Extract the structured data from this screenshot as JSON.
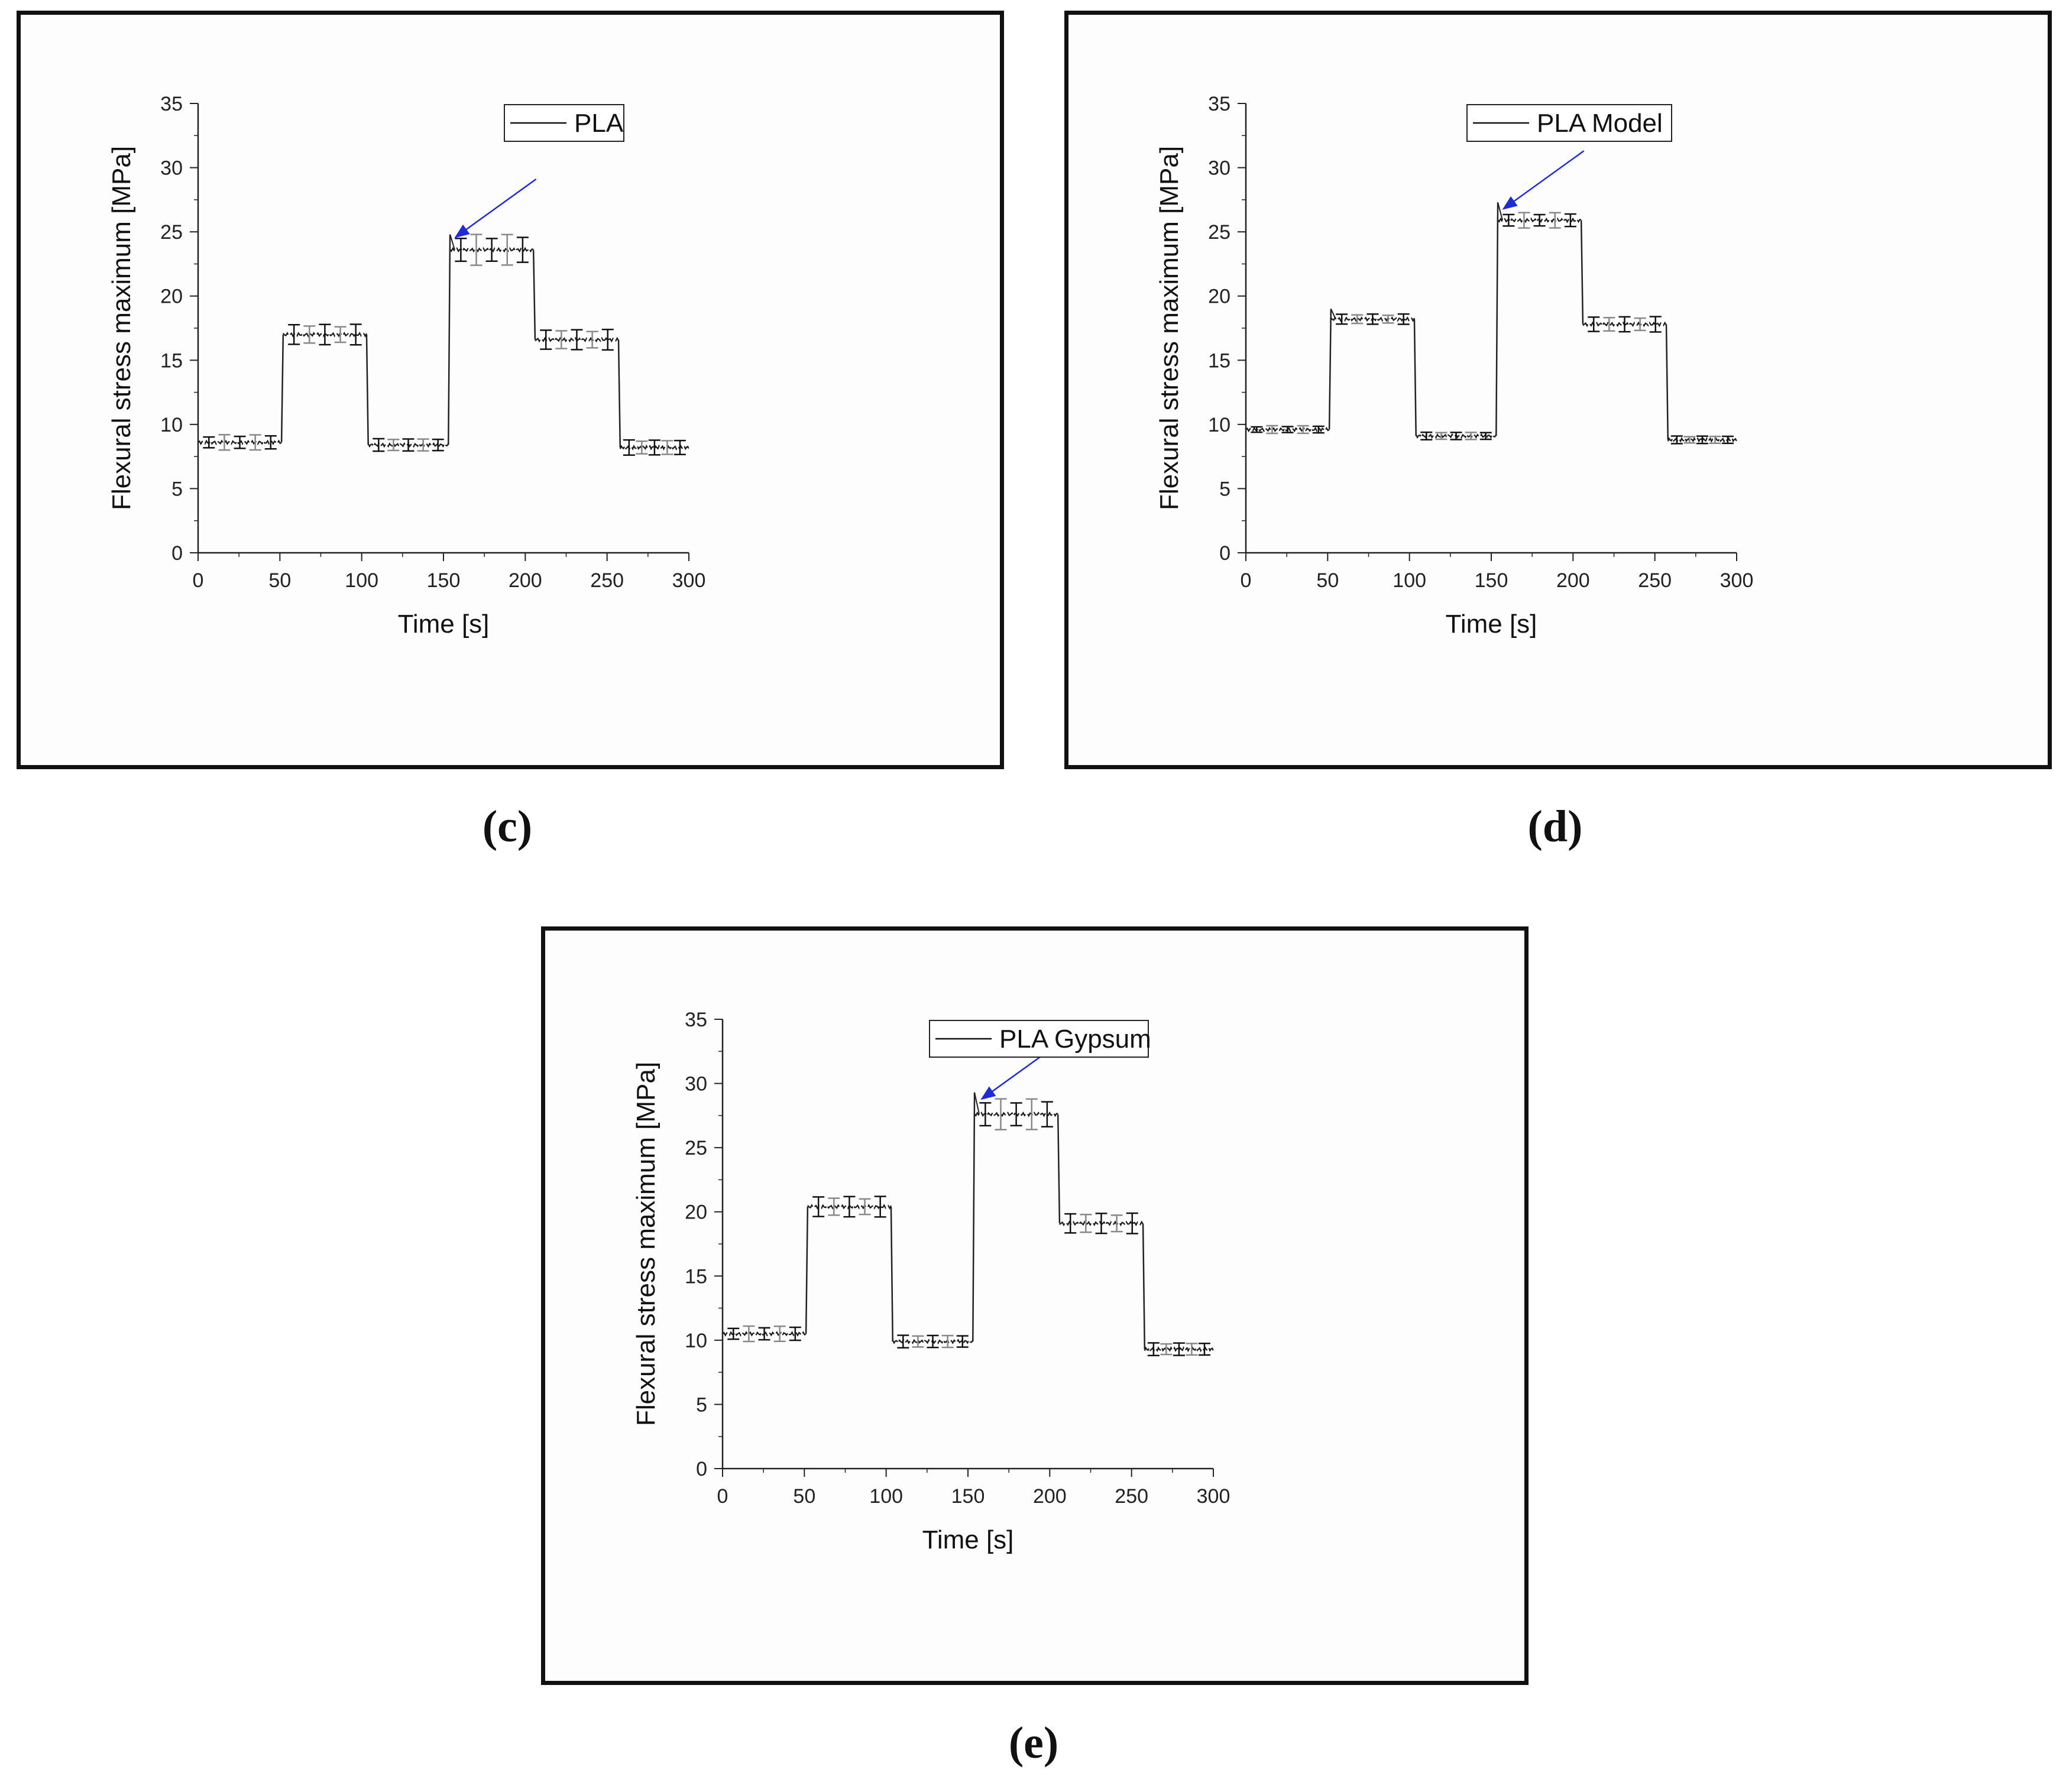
{
  "chart_data": [
    {
      "type": "line",
      "panel_label": "c",
      "legend": "PLA",
      "xlabel": "Time [s]",
      "ylabel": "Flexural stress maximum [MPa]",
      "xlim": [
        0,
        300
      ],
      "ylim": [
        0,
        35
      ],
      "xticks": [
        0,
        50,
        100,
        150,
        200,
        250,
        300
      ],
      "yticks": [
        0,
        5,
        10,
        15,
        20,
        25,
        30,
        35
      ],
      "series": [
        {
          "name": "PLA",
          "segments": [
            {
              "x": [
                0,
                51
              ],
              "y": 8.6,
              "err": 0.6
            },
            {
              "x": [
                52,
                103
              ],
              "y": 17.0,
              "err": 0.8
            },
            {
              "x": [
                104,
                153
              ],
              "y": 8.4,
              "err": 0.5
            },
            {
              "x": [
                154,
                205
              ],
              "y": 23.6,
              "err": 1.2,
              "peak": 24.8
            },
            {
              "x": [
                206,
                257
              ],
              "y": 16.6,
              "err": 0.8
            },
            {
              "x": [
                258,
                300
              ],
              "y": 8.2,
              "err": 0.6
            }
          ]
        }
      ],
      "arrow": {
        "x": 156,
        "y": 24.5
      },
      "arrow_color": "#1f2bd6"
    },
    {
      "type": "line",
      "panel_label": "d",
      "legend": "PLA Model",
      "xlabel": "Time [s]",
      "ylabel": "Flexural stress maximum [MPa]",
      "xlim": [
        0,
        300
      ],
      "ylim": [
        0,
        35
      ],
      "xticks": [
        0,
        50,
        100,
        150,
        200,
        250,
        300
      ],
      "yticks": [
        0,
        5,
        10,
        15,
        20,
        25,
        30,
        35
      ],
      "series": [
        {
          "name": "PLA Model",
          "segments": [
            {
              "x": [
                0,
                51
              ],
              "y": 9.6,
              "err": 0.3
            },
            {
              "x": [
                52,
                103
              ],
              "y": 18.2,
              "err": 0.4,
              "peak": 19.0
            },
            {
              "x": [
                104,
                153
              ],
              "y": 9.1,
              "err": 0.3
            },
            {
              "x": [
                154,
                205
              ],
              "y": 25.9,
              "err": 0.6,
              "peak": 27.3
            },
            {
              "x": [
                206,
                257
              ],
              "y": 17.8,
              "err": 0.6
            },
            {
              "x": [
                258,
                300
              ],
              "y": 8.8,
              "err": 0.3
            }
          ]
        }
      ],
      "arrow": {
        "x": 156,
        "y": 26.7
      },
      "arrow_color": "#1f2bd6"
    },
    {
      "type": "line",
      "panel_label": "e",
      "legend": "PLA Gypsum",
      "xlabel": "Time [s]",
      "ylabel": "Flexural stress maximum [MPa]",
      "xlim": [
        0,
        300
      ],
      "ylim": [
        0,
        35
      ],
      "xticks": [
        0,
        50,
        100,
        150,
        200,
        250,
        300
      ],
      "yticks": [
        0,
        5,
        10,
        15,
        20,
        25,
        30,
        35
      ],
      "series": [
        {
          "name": "PLA Gypsum",
          "segments": [
            {
              "x": [
                0,
                51
              ],
              "y": 10.5,
              "err": 0.6
            },
            {
              "x": [
                52,
                103
              ],
              "y": 20.4,
              "err": 0.8
            },
            {
              "x": [
                104,
                153
              ],
              "y": 9.9,
              "err": 0.5
            },
            {
              "x": [
                154,
                205
              ],
              "y": 27.6,
              "err": 1.2,
              "peak": 29.3
            },
            {
              "x": [
                206,
                257
              ],
              "y": 19.1,
              "err": 0.8
            },
            {
              "x": [
                258,
                300
              ],
              "y": 9.3,
              "err": 0.5
            }
          ]
        }
      ],
      "arrow": {
        "x": 157,
        "y": 28.7
      },
      "arrow_color": "#1f2bd6"
    }
  ],
  "captions": [
    "(c)",
    "(d)",
    "(e)"
  ]
}
